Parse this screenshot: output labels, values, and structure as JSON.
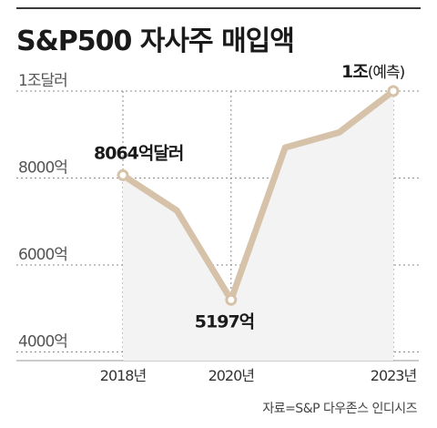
{
  "header": {
    "title": "S&P500 자사주 매입액"
  },
  "footer": {
    "source": "자료=S&P 다우존스 인디시즈"
  },
  "chart_data": {
    "type": "line",
    "title": "S&P500 자사주 매입액",
    "x": [
      2018,
      2019,
      2020,
      2021,
      2022,
      2023
    ],
    "x_tick_labels": [
      {
        "x": 2018,
        "label": "2018년"
      },
      {
        "x": 2020,
        "label": "2020년"
      },
      {
        "x": 2023,
        "label": "2023년"
      }
    ],
    "series": [
      {
        "values": [
          8064,
          7250,
          5197,
          8700,
          9050,
          10000
        ]
      }
    ],
    "y_tick_labels": [
      {
        "y": 4000,
        "label": "4000억"
      },
      {
        "y": 6000,
        "label": "6000억"
      },
      {
        "y": 8000,
        "label": "8000억"
      },
      {
        "y": 10000,
        "label": "1조달러"
      }
    ],
    "ylim": [
      3800,
      10000
    ],
    "grid": true,
    "annotations": [
      {
        "x": 2018,
        "text": "8064억달러"
      },
      {
        "x": 2020,
        "text": "5197억"
      },
      {
        "x": 2023,
        "text": "1조",
        "sub": "(예측)"
      }
    ],
    "colors": {
      "line": "#d6c2a8",
      "area": "#f3f3f3",
      "marker_fill": "#ffffff",
      "grid": "#8a8a8a"
    }
  }
}
